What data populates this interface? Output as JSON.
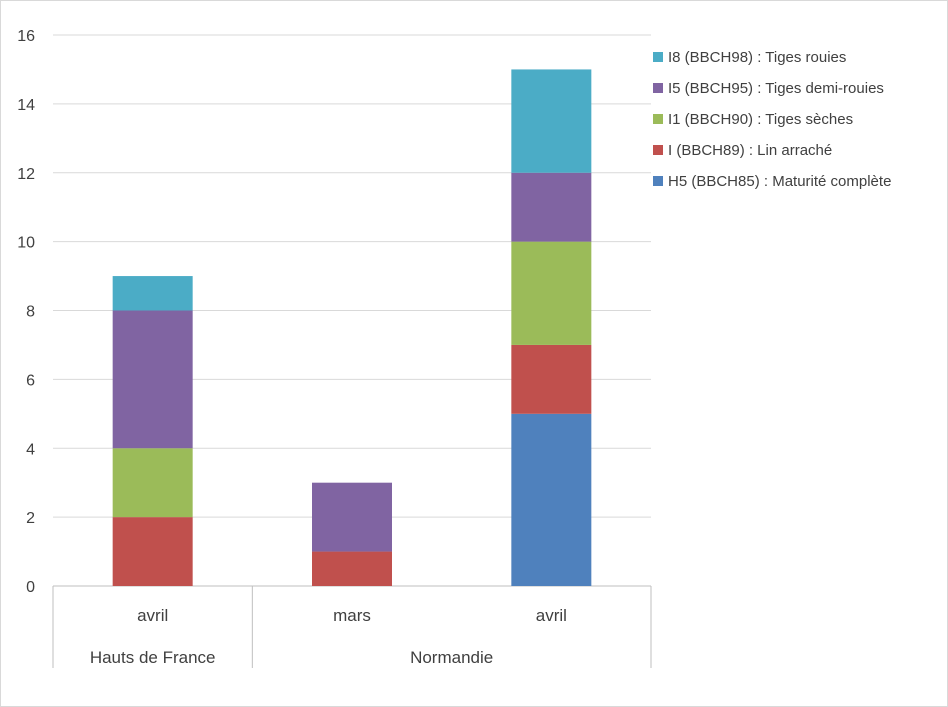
{
  "chart_data": {
    "type": "bar",
    "stacked": true,
    "categories": [
      {
        "label": "avril",
        "group": "Hauts de France"
      },
      {
        "label": "mars",
        "group": "Normandie"
      },
      {
        "label": "avril",
        "group": "Normandie"
      }
    ],
    "groups": [
      "Hauts de France",
      "Normandie"
    ],
    "series": [
      {
        "name": "H5 (BBCH85) : Maturité complète",
        "color": "#4f81bd",
        "values": [
          0,
          0,
          5
        ]
      },
      {
        "name": "I (BBCH89) : Lin arraché",
        "color": "#c0504d",
        "values": [
          2,
          1,
          2
        ]
      },
      {
        "name": "I1 (BBCH90) : Tiges sèches",
        "color": "#9bbb59",
        "values": [
          2,
          0,
          3
        ]
      },
      {
        "name": "I5 (BBCH95) : Tiges demi-rouies",
        "color": "#8064a2",
        "values": [
          4,
          2,
          2
        ]
      },
      {
        "name": "I8 (BBCH98) : Tiges rouies",
        "color": "#4bacc6",
        "values": [
          1,
          0,
          3
        ]
      }
    ],
    "ylim": [
      0,
      16
    ],
    "yticks": [
      0,
      2,
      4,
      6,
      8,
      10,
      12,
      14,
      16
    ],
    "grid": true,
    "legend_position": "right",
    "legend_order": "reversed"
  }
}
